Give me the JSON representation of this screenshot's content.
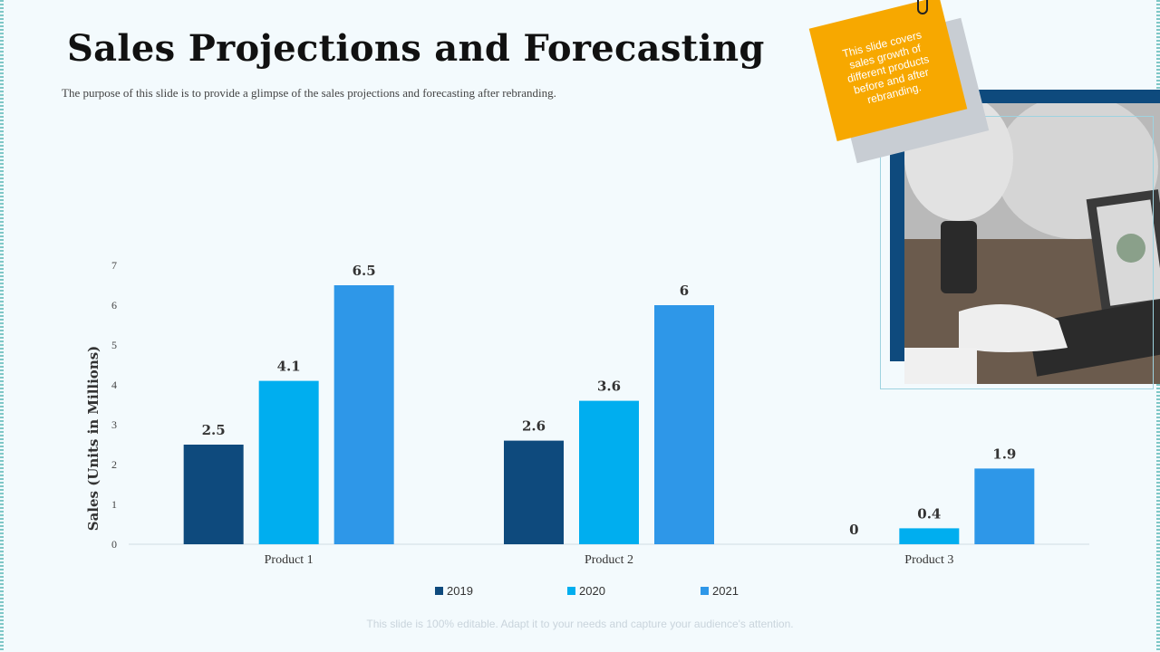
{
  "slide": {
    "title": "Sales Projections and Forecasting",
    "subtitle": "The purpose of this slide is to provide a glimpse of the sales projections and forecasting after rebranding.",
    "sticky_note": "This slide covers sales growth of different products before and after rebranding.",
    "footer": "This slide is 100% editable. Adapt it to your needs and capture your audience's attention."
  },
  "colors": {
    "2019": "#0e4a7d",
    "2020": "#00aeef",
    "2021": "#2e97e8",
    "sticky": "#f7a800",
    "photo_frame": "#0e4a7d"
  },
  "chart_data": {
    "type": "bar",
    "categories": [
      "Product 1",
      "Product 2",
      "Product 3"
    ],
    "series": [
      {
        "name": "2019",
        "values": [
          2.5,
          2.6,
          0
        ]
      },
      {
        "name": "2020",
        "values": [
          4.1,
          3.6,
          0.4
        ]
      },
      {
        "name": "2021",
        "values": [
          6.5,
          6,
          1.9
        ]
      }
    ],
    "ylabel": "Sales (Units in Millions)",
    "xlabel": "",
    "ylim": [
      0,
      7
    ],
    "yticks": [
      0,
      1,
      2,
      3,
      4,
      5,
      6,
      7
    ],
    "grid": false,
    "legend": "bottom-center",
    "data_labels": true
  }
}
